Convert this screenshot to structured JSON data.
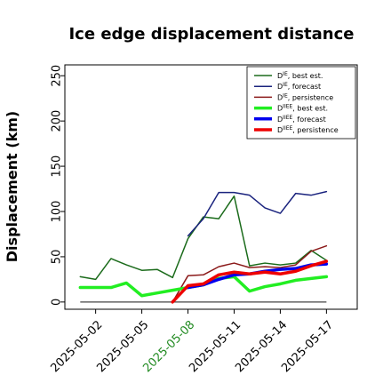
{
  "chart_data": {
    "type": "line",
    "title": "Ice edge displacement distance",
    "xlabel": "",
    "ylabel": "Displacement (km)",
    "ylim": [
      -8,
      262
    ],
    "xlim": [
      "2025-04-30",
      "2025-05-19"
    ],
    "xticks": [
      "2025-05-02",
      "2025-05-05",
      "2025-05-08",
      "2025-05-11",
      "2025-05-14",
      "2025-05-17"
    ],
    "xtick_colors": [
      "#000000",
      "#000000",
      "#228b22",
      "#000000",
      "#000000",
      "#000000"
    ],
    "yticks": [
      0,
      50,
      100,
      150,
      200,
      250
    ],
    "grid": false,
    "legend_position": "top-right",
    "zero_line": {
      "x_start": "2025-05-01",
      "x_end": "2025-05-17",
      "y": 0,
      "color": "#444444"
    },
    "series": [
      {
        "label_main": "D",
        "label_sup": "IE",
        "label_rest": ", best est.",
        "color": "#1b6b1b",
        "width": 1.5,
        "x": [
          "2025-05-01",
          "2025-05-02",
          "2025-05-03",
          "2025-05-04",
          "2025-05-05",
          "2025-05-06",
          "2025-05-07",
          "2025-05-08",
          "2025-05-09",
          "2025-05-10",
          "2025-05-11",
          "2025-05-12",
          "2025-05-13",
          "2025-05-14",
          "2025-05-15",
          "2025-05-16",
          "2025-05-17"
        ],
        "y": [
          28,
          25,
          48,
          41,
          35,
          36,
          27,
          70,
          94,
          92,
          117,
          40,
          43,
          41,
          43,
          57,
          46
        ]
      },
      {
        "label_main": "D",
        "label_sup": "IE",
        "label_rest": ", forecast",
        "color": "#1a237e",
        "width": 1.5,
        "x": [
          "2025-05-08",
          "2025-05-09",
          "2025-05-10",
          "2025-05-11",
          "2025-05-12",
          "2025-05-13",
          "2025-05-14",
          "2025-05-15",
          "2025-05-16",
          "2025-05-17"
        ],
        "y": [
          73,
          92,
          121,
          121,
          118,
          104,
          98,
          120,
          118,
          122
        ]
      },
      {
        "label_main": "D",
        "label_sup": "IE",
        "label_rest": ", persistence",
        "color": "#8b1a1a",
        "width": 1.5,
        "x": [
          "2025-05-07",
          "2025-05-08",
          "2025-05-09",
          "2025-05-10",
          "2025-05-11",
          "2025-05-12",
          "2025-05-13",
          "2025-05-14",
          "2025-05-15",
          "2025-05-16",
          "2025-05-17"
        ],
        "y": [
          0,
          29,
          30,
          39,
          43,
          38,
          39,
          38,
          41,
          56,
          62
        ]
      },
      {
        "label_main": "D",
        "label_sup": "IIEE",
        "label_rest": ", best est.",
        "color": "#22ee22",
        "width": 3.5,
        "x": [
          "2025-05-01",
          "2025-05-02",
          "2025-05-03",
          "2025-05-04",
          "2025-05-05",
          "2025-05-06",
          "2025-05-07",
          "2025-05-08",
          "2025-05-09",
          "2025-05-10",
          "2025-05-11",
          "2025-05-12",
          "2025-05-13",
          "2025-05-14",
          "2025-05-15",
          "2025-05-16",
          "2025-05-17"
        ],
        "y": [
          16,
          16,
          16,
          21,
          7,
          10,
          13,
          16,
          19,
          26,
          28,
          12,
          17,
          20,
          24,
          26,
          28
        ]
      },
      {
        "label_main": "D",
        "label_sup": "IIEE",
        "label_rest": ", forecast",
        "color": "#0000ee",
        "width": 3.5,
        "x": [
          "2025-05-08",
          "2025-05-09",
          "2025-05-10",
          "2025-05-11",
          "2025-05-12",
          "2025-05-13",
          "2025-05-14",
          "2025-05-15",
          "2025-05-16",
          "2025-05-17"
        ],
        "y": [
          16,
          19,
          25,
          30,
          31,
          34,
          36,
          37,
          41,
          42
        ]
      },
      {
        "label_main": "D",
        "label_sup": "IIEE",
        "label_rest": ", persistence",
        "color": "#ee0000",
        "width": 3.5,
        "x": [
          "2025-05-07",
          "2025-05-08",
          "2025-05-09",
          "2025-05-10",
          "2025-05-11",
          "2025-05-12",
          "2025-05-13",
          "2025-05-14",
          "2025-05-15",
          "2025-05-16",
          "2025-05-17"
        ],
        "y": [
          0,
          18,
          20,
          30,
          33,
          31,
          33,
          31,
          34,
          40,
          45
        ]
      }
    ]
  }
}
